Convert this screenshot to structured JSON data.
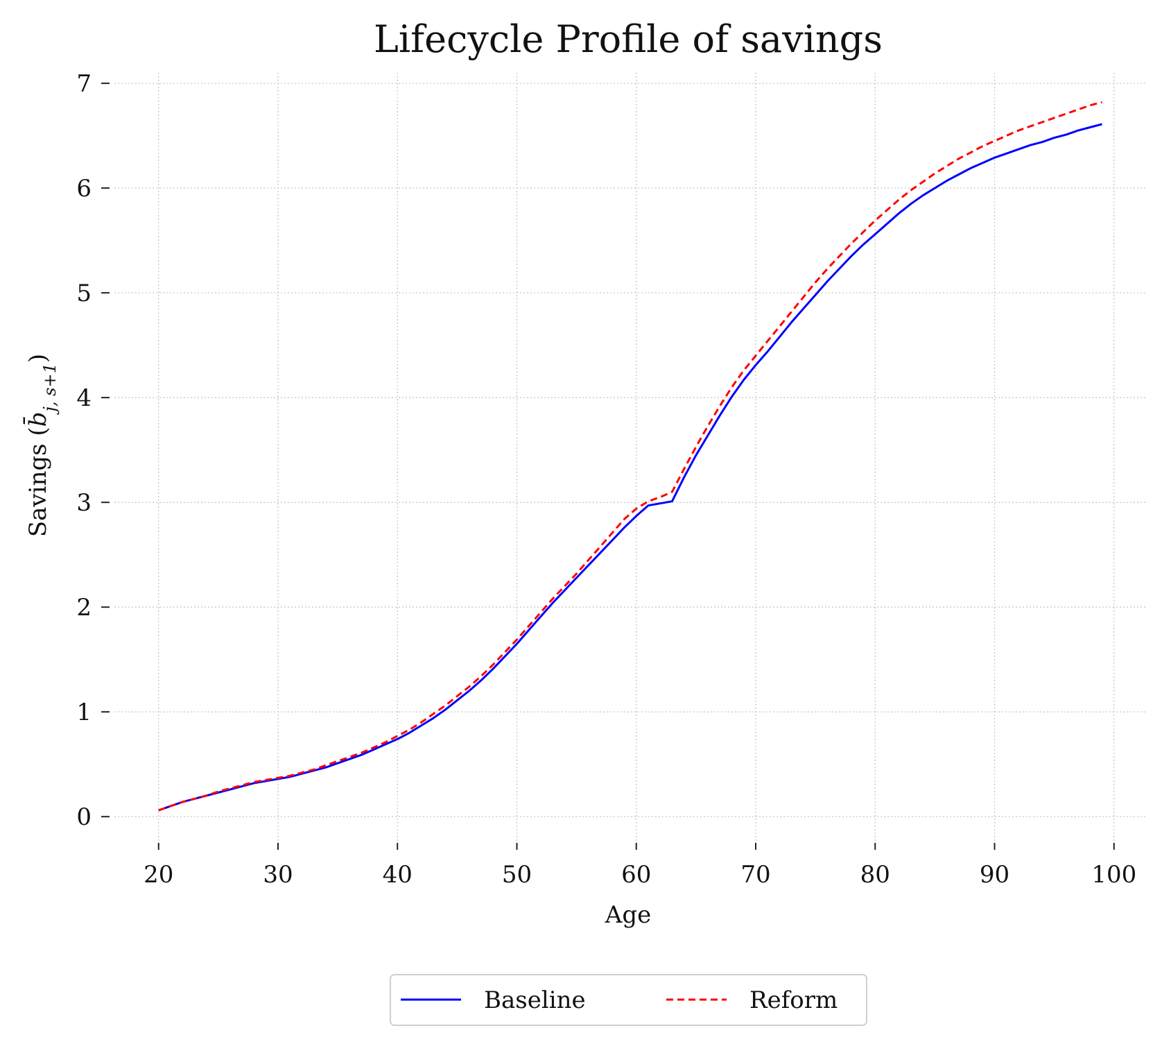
{
  "chart_data": {
    "type": "line",
    "title": "Lifecycle Profile of savings",
    "xlabel": "Age",
    "ylabel": "Savings (b̄_{j,s+1})",
    "ylabel_parts": {
      "prefix": "Savings (",
      "symbol": "b̄",
      "subscript": "j, s+1",
      "suffix": ")"
    },
    "xlim": [
      16.3,
      102.8
    ],
    "ylim": [
      -0.25,
      7.1
    ],
    "xticks": [
      20,
      30,
      40,
      50,
      60,
      70,
      80,
      90,
      100
    ],
    "yticks": [
      0,
      1,
      2,
      3,
      4,
      5,
      6,
      7
    ],
    "grid": true,
    "legend": {
      "placement": "bottom-center",
      "columns": 2
    },
    "x": [
      20,
      21,
      22,
      23,
      24,
      25,
      26,
      27,
      28,
      29,
      30,
      31,
      32,
      33,
      34,
      35,
      36,
      37,
      38,
      39,
      40,
      41,
      42,
      43,
      44,
      45,
      46,
      47,
      48,
      49,
      50,
      51,
      52,
      53,
      54,
      55,
      56,
      57,
      58,
      59,
      60,
      61,
      62,
      63,
      64,
      65,
      66,
      67,
      68,
      69,
      70,
      71,
      72,
      73,
      74,
      75,
      76,
      77,
      78,
      79,
      80,
      81,
      82,
      83,
      84,
      85,
      86,
      87,
      88,
      89,
      90,
      91,
      92,
      93,
      94,
      95,
      96,
      97,
      98,
      99
    ],
    "series": [
      {
        "name": "Baseline",
        "color": "#0000ff",
        "style": "solid",
        "values": [
          0.06,
          0.1,
          0.14,
          0.17,
          0.2,
          0.23,
          0.26,
          0.29,
          0.32,
          0.34,
          0.36,
          0.38,
          0.41,
          0.44,
          0.47,
          0.51,
          0.55,
          0.59,
          0.64,
          0.69,
          0.74,
          0.8,
          0.87,
          0.94,
          1.02,
          1.11,
          1.2,
          1.3,
          1.41,
          1.53,
          1.65,
          1.78,
          1.91,
          2.04,
          2.16,
          2.28,
          2.4,
          2.52,
          2.64,
          2.76,
          2.87,
          2.97,
          2.99,
          3.01,
          3.24,
          3.45,
          3.64,
          3.83,
          4.01,
          4.17,
          4.31,
          4.44,
          4.58,
          4.72,
          4.85,
          4.98,
          5.11,
          5.23,
          5.35,
          5.46,
          5.56,
          5.66,
          5.76,
          5.85,
          5.93,
          6.0,
          6.07,
          6.13,
          6.19,
          6.24,
          6.29,
          6.33,
          6.37,
          6.41,
          6.44,
          6.48,
          6.51,
          6.55,
          6.58,
          6.61
        ]
      },
      {
        "name": "Reform",
        "color": "#ff0000",
        "style": "dashed",
        "values": [
          0.06,
          0.1,
          0.14,
          0.17,
          0.2,
          0.24,
          0.27,
          0.3,
          0.33,
          0.35,
          0.37,
          0.39,
          0.42,
          0.45,
          0.49,
          0.53,
          0.57,
          0.61,
          0.66,
          0.71,
          0.77,
          0.83,
          0.9,
          0.98,
          1.06,
          1.15,
          1.24,
          1.34,
          1.45,
          1.57,
          1.69,
          1.82,
          1.95,
          2.08,
          2.2,
          2.32,
          2.45,
          2.58,
          2.71,
          2.84,
          2.94,
          3.01,
          3.05,
          3.1,
          3.32,
          3.53,
          3.73,
          3.92,
          4.1,
          4.26,
          4.4,
          4.54,
          4.68,
          4.82,
          4.96,
          5.1,
          5.23,
          5.35,
          5.47,
          5.58,
          5.69,
          5.79,
          5.89,
          5.98,
          6.06,
          6.14,
          6.21,
          6.28,
          6.34,
          6.4,
          6.45,
          6.5,
          6.55,
          6.59,
          6.63,
          6.67,
          6.71,
          6.75,
          6.79,
          6.82
        ]
      }
    ]
  }
}
